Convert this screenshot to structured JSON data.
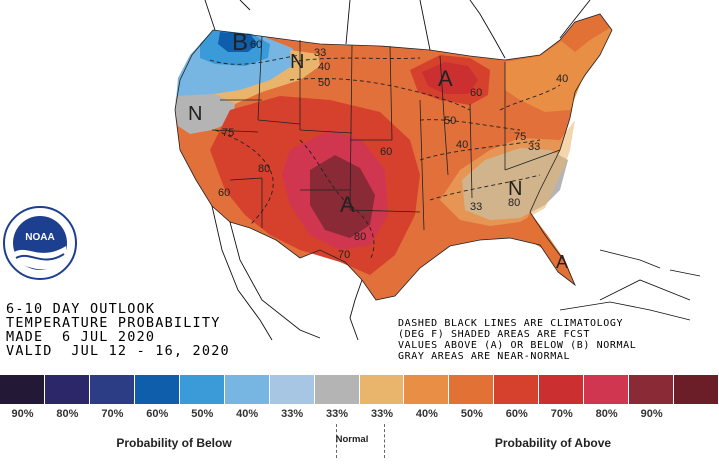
{
  "title_lines": [
    "6-10 DAY OUTLOOK",
    "TEMPERATURE PROBABILITY",
    "MADE  6 JUL 2020",
    "VALID  JUL 12 - 16, 2020"
  ],
  "notes": [
    "DASHED BLACK LINES ARE CLIMATOLOGY",
    "(DEG F) SHADED AREAS ARE FCST",
    "VALUES ABOVE (A) OR BELOW (B) NORMAL",
    "GRAY AREAS ARE NEAR-NORMAL"
  ],
  "logo": {
    "text": "NOAA",
    "ring_text": "NATIONAL OCEANIC AND ATMOSPHERIC ADMINISTRATION"
  },
  "legend": {
    "swatches": [
      {
        "label": "90%",
        "color": "#241837"
      },
      {
        "label": "80%",
        "color": "#2b2769"
      },
      {
        "label": "70%",
        "color": "#2d3d85"
      },
      {
        "label": "60%",
        "color": "#0e5eab"
      },
      {
        "label": "50%",
        "color": "#3b9bd9"
      },
      {
        "label": "40%",
        "color": "#77b6e3"
      },
      {
        "label": "33%",
        "color": "#a7c6e4"
      },
      {
        "label": "33%",
        "color": "#b4b4b4"
      },
      {
        "label": "33%",
        "color": "#e9b46c"
      },
      {
        "label": "40%",
        "color": "#e88f45"
      },
      {
        "label": "50%",
        "color": "#e27136"
      },
      {
        "label": "60%",
        "color": "#d5412d"
      },
      {
        "label": "70%",
        "color": "#cc2f30"
      },
      {
        "label": "80%",
        "color": "#d0364f"
      },
      {
        "label": "90%",
        "color": "#8a2a37"
      },
      {
        "label": "",
        "color": "#6b1e28"
      }
    ],
    "below_caption": "Probability of Below",
    "normal_caption": "Normal",
    "above_caption": "Probability of Above"
  },
  "map_labels": [
    {
      "text": "B"
    },
    {
      "text": "A"
    },
    {
      "text": "A"
    },
    {
      "text": "A"
    },
    {
      "text": "N"
    },
    {
      "text": "N"
    },
    {
      "text": "N"
    }
  ],
  "contour_labels": [
    "60",
    "33",
    "40",
    "50",
    "60",
    "75",
    "80",
    "60",
    "70",
    "80",
    "60",
    "50",
    "40",
    "33",
    "80",
    "75",
    "33",
    "40"
  ]
}
